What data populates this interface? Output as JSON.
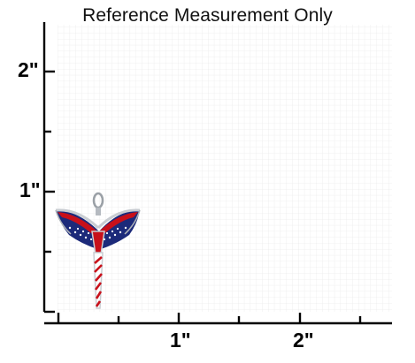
{
  "header": {
    "title": "Reference Measurement Only"
  },
  "ruler": {
    "unit": "inch",
    "y_labels": [
      "2\"",
      "1\""
    ],
    "x_labels": [
      "1\"",
      "2\""
    ],
    "grid": true
  },
  "colors": {
    "grid": "#e6e6e6",
    "axis": "#000000",
    "pendant_red": "#c8101a",
    "pendant_blue": "#1c2a7a",
    "pendant_silver": "#c9cdd2"
  },
  "product": {
    "icon": "flag-angel-pendant-icon"
  }
}
